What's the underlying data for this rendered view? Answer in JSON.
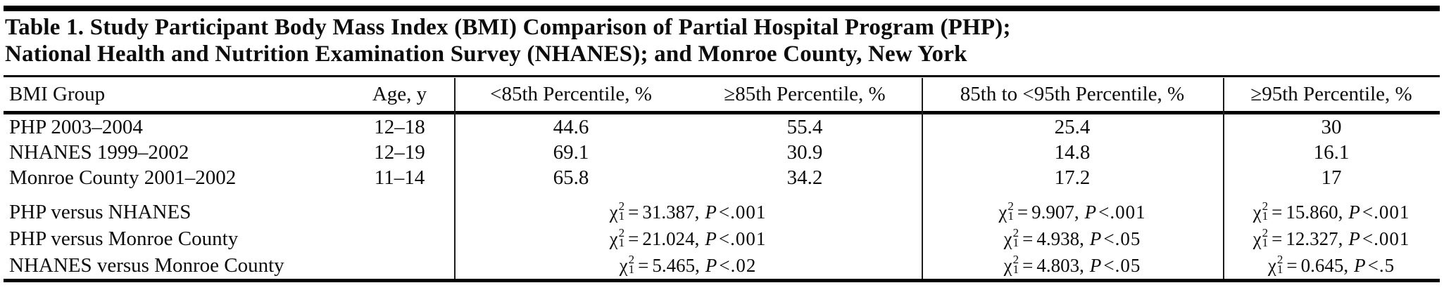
{
  "title": {
    "line1": "Table 1. Study Participant Body Mass Index (BMI) Comparison of Partial Hospital Program (PHP);",
    "line2": "National Health and Nutrition Examination Survey (NHANES); and Monroe County, New York"
  },
  "symbols": {
    "chi": "χ",
    "chi_sup": "2",
    "chi_sub": "1",
    "equals": "=",
    "comma": ",",
    "p_label": "P"
  },
  "columns": [
    "BMI Group",
    "Age, y",
    "<85th Percentile, %",
    "≥85th Percentile, %",
    "85th to <95th Percentile, %",
    "≥95th Percentile, %"
  ],
  "data_rows": [
    {
      "group": "PHP 2003–2004",
      "age": "12–18",
      "lt85": "44.6",
      "ge85": "55.4",
      "p85to95": "25.4",
      "ge95": "30"
    },
    {
      "group": "NHANES 1999–2002",
      "age": "12–19",
      "lt85": "69.1",
      "ge85": "30.9",
      "p85to95": "14.8",
      "ge95": "16.1"
    },
    {
      "group": "Monroe County 2001–2002",
      "age": "11–14",
      "lt85": "65.8",
      "ge85": "34.2",
      "p85to95": "17.2",
      "ge95": "17"
    }
  ],
  "comparison_rows": [
    {
      "label": "PHP versus NHANES",
      "lt85_ge85": {
        "chi_sq": "31.387",
        "p": "<.001"
      },
      "p85to95": {
        "chi_sq": "9.907",
        "p": "<.001"
      },
      "ge95": {
        "chi_sq": "15.860",
        "p": "<.001"
      }
    },
    {
      "label": "PHP versus Monroe County",
      "lt85_ge85": {
        "chi_sq": "21.024",
        "p": "<.001"
      },
      "p85to95": {
        "chi_sq": "4.938",
        "p": "<.05"
      },
      "ge95": {
        "chi_sq": "12.327",
        "p": "<.001"
      }
    },
    {
      "label": "NHANES versus Monroe County",
      "lt85_ge85": {
        "chi_sq": "5.465",
        "p": "<.02"
      },
      "p85to95": {
        "chi_sq": "4.803",
        "p": "<.05"
      },
      "ge95": {
        "chi_sq": "0.645",
        "p": "<.5"
      }
    }
  ],
  "colors": {
    "text": "#0c0c0c",
    "rule": "#000000",
    "background": "#ffffff"
  }
}
